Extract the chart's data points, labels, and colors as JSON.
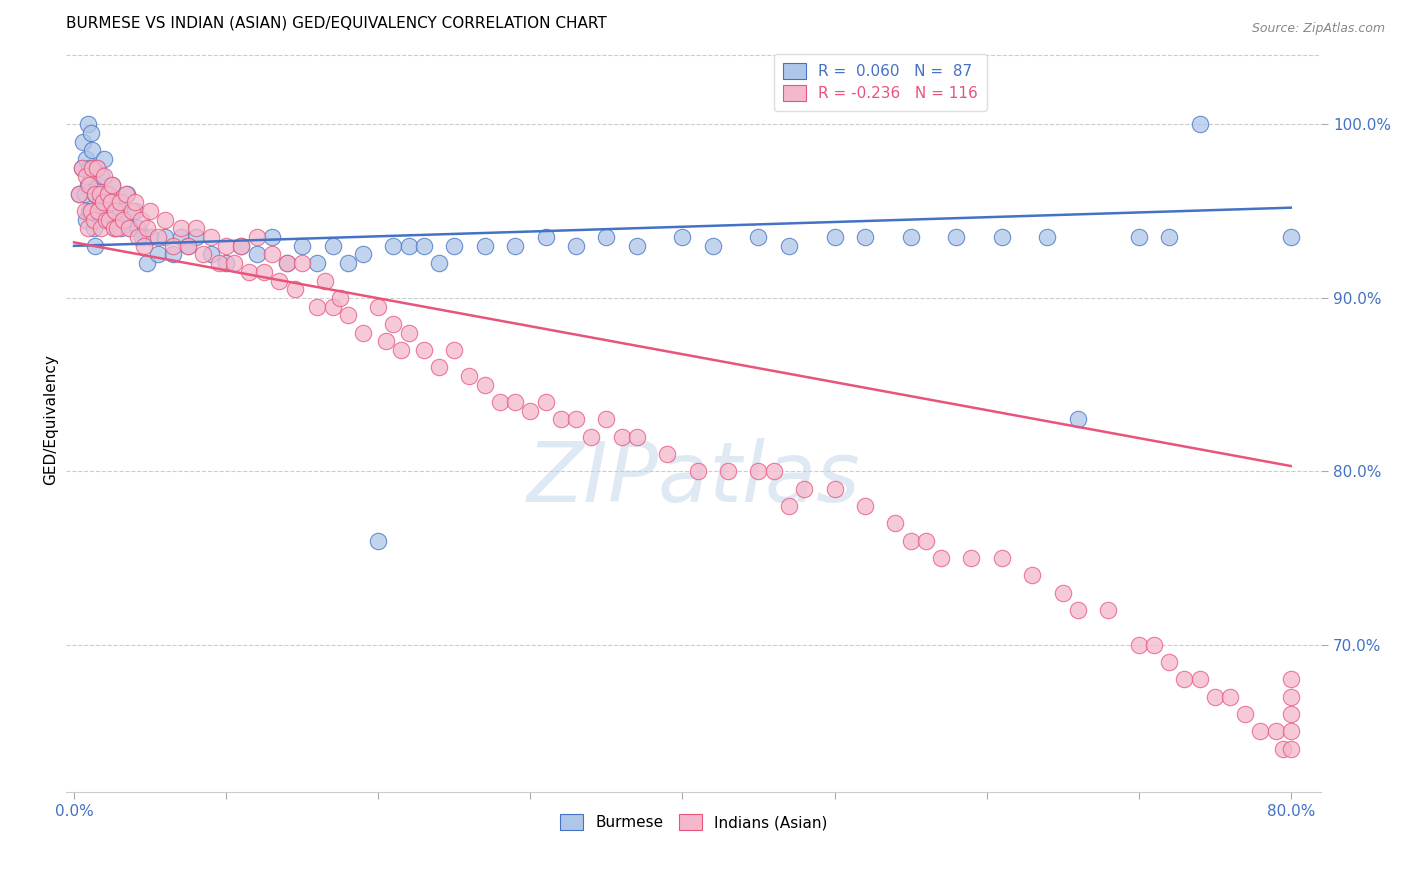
{
  "title": "BURMESE VS INDIAN (ASIAN) GED/EQUIVALENCY CORRELATION CHART",
  "source": "Source: ZipAtlas.com",
  "ylabel": "GED/Equivalency",
  "xlim": [
    -0.005,
    0.82
  ],
  "ylim": [
    0.615,
    1.045
  ],
  "xtick_vals": [
    0.0,
    0.1,
    0.2,
    0.3,
    0.4,
    0.5,
    0.6,
    0.7,
    0.8
  ],
  "xticklabels": [
    "0.0%",
    "",
    "",
    "",
    "",
    "",
    "",
    "",
    "80.0%"
  ],
  "yticks_right": [
    0.7,
    0.8,
    0.9,
    1.0
  ],
  "yticklabels_right": [
    "70.0%",
    "80.0%",
    "90.0%",
    "100.0%"
  ],
  "top_gridline_y": 1.04,
  "blue_color": "#4472c4",
  "pink_color": "#e8547a",
  "blue_fill": "#aec6e8",
  "pink_fill": "#f4b8cc",
  "watermark": "ZIPatlas",
  "watermark_color": "#b8d0e8",
  "grid_color": "#cccccc",
  "axis_tick_color": "#4472c4",
  "title_fontsize": 11,
  "blue_regline": [
    0.0,
    0.8,
    0.93,
    0.952
  ],
  "pink_regline": [
    0.0,
    0.8,
    0.932,
    0.803
  ],
  "legend": [
    {
      "label": "R =  0.060   N =  87",
      "color": "#4472c4"
    },
    {
      "label": "R = -0.236   N = 116",
      "color": "#e8547a"
    }
  ],
  "blue_x": [
    0.003,
    0.005,
    0.006,
    0.007,
    0.008,
    0.008,
    0.009,
    0.009,
    0.01,
    0.01,
    0.011,
    0.011,
    0.012,
    0.012,
    0.013,
    0.013,
    0.014,
    0.014,
    0.015,
    0.015,
    0.016,
    0.017,
    0.018,
    0.019,
    0.02,
    0.02,
    0.021,
    0.022,
    0.023,
    0.025,
    0.026,
    0.027,
    0.028,
    0.03,
    0.031,
    0.033,
    0.035,
    0.037,
    0.04,
    0.042,
    0.045,
    0.048,
    0.05,
    0.055,
    0.06,
    0.065,
    0.07,
    0.075,
    0.08,
    0.09,
    0.1,
    0.11,
    0.12,
    0.13,
    0.14,
    0.15,
    0.16,
    0.17,
    0.18,
    0.19,
    0.2,
    0.21,
    0.22,
    0.23,
    0.24,
    0.25,
    0.27,
    0.29,
    0.31,
    0.33,
    0.35,
    0.37,
    0.4,
    0.42,
    0.45,
    0.47,
    0.5,
    0.52,
    0.55,
    0.58,
    0.61,
    0.64,
    0.66,
    0.7,
    0.72,
    0.74,
    0.8
  ],
  "blue_y": [
    0.96,
    0.975,
    0.99,
    0.96,
    0.98,
    0.945,
    1.0,
    0.965,
    0.975,
    0.95,
    0.995,
    0.97,
    0.985,
    0.95,
    0.975,
    0.94,
    0.96,
    0.93,
    0.975,
    0.95,
    0.965,
    0.955,
    0.97,
    0.95,
    0.98,
    0.95,
    0.96,
    0.945,
    0.955,
    0.965,
    0.95,
    0.94,
    0.955,
    0.95,
    0.94,
    0.945,
    0.96,
    0.94,
    0.95,
    0.94,
    0.935,
    0.92,
    0.935,
    0.925,
    0.935,
    0.925,
    0.935,
    0.93,
    0.935,
    0.925,
    0.92,
    0.93,
    0.925,
    0.935,
    0.92,
    0.93,
    0.92,
    0.93,
    0.92,
    0.925,
    0.76,
    0.93,
    0.93,
    0.93,
    0.92,
    0.93,
    0.93,
    0.93,
    0.935,
    0.93,
    0.935,
    0.93,
    0.935,
    0.93,
    0.935,
    0.93,
    0.935,
    0.935,
    0.935,
    0.935,
    0.935,
    0.935,
    0.83,
    0.935,
    0.935,
    1.0,
    0.935
  ],
  "pink_x": [
    0.003,
    0.005,
    0.007,
    0.008,
    0.009,
    0.01,
    0.011,
    0.012,
    0.013,
    0.014,
    0.015,
    0.016,
    0.017,
    0.018,
    0.019,
    0.02,
    0.021,
    0.022,
    0.023,
    0.024,
    0.025,
    0.026,
    0.027,
    0.028,
    0.03,
    0.032,
    0.034,
    0.036,
    0.038,
    0.04,
    0.042,
    0.044,
    0.046,
    0.048,
    0.05,
    0.055,
    0.06,
    0.065,
    0.07,
    0.075,
    0.08,
    0.085,
    0.09,
    0.095,
    0.1,
    0.105,
    0.11,
    0.115,
    0.12,
    0.125,
    0.13,
    0.135,
    0.14,
    0.145,
    0.15,
    0.16,
    0.165,
    0.17,
    0.175,
    0.18,
    0.19,
    0.2,
    0.205,
    0.21,
    0.215,
    0.22,
    0.23,
    0.24,
    0.25,
    0.26,
    0.27,
    0.28,
    0.29,
    0.3,
    0.31,
    0.32,
    0.33,
    0.34,
    0.35,
    0.36,
    0.37,
    0.39,
    0.41,
    0.43,
    0.45,
    0.46,
    0.47,
    0.48,
    0.5,
    0.52,
    0.54,
    0.55,
    0.56,
    0.57,
    0.59,
    0.61,
    0.63,
    0.65,
    0.66,
    0.68,
    0.7,
    0.71,
    0.72,
    0.73,
    0.74,
    0.75,
    0.76,
    0.77,
    0.78,
    0.79,
    0.795,
    0.8,
    0.8,
    0.8,
    0.8,
    0.8
  ],
  "pink_y": [
    0.96,
    0.975,
    0.95,
    0.97,
    0.94,
    0.965,
    0.95,
    0.975,
    0.945,
    0.96,
    0.975,
    0.95,
    0.96,
    0.94,
    0.955,
    0.97,
    0.945,
    0.96,
    0.945,
    0.955,
    0.965,
    0.94,
    0.95,
    0.94,
    0.955,
    0.945,
    0.96,
    0.94,
    0.95,
    0.955,
    0.935,
    0.945,
    0.93,
    0.94,
    0.95,
    0.935,
    0.945,
    0.93,
    0.94,
    0.93,
    0.94,
    0.925,
    0.935,
    0.92,
    0.93,
    0.92,
    0.93,
    0.915,
    0.935,
    0.915,
    0.925,
    0.91,
    0.92,
    0.905,
    0.92,
    0.895,
    0.91,
    0.895,
    0.9,
    0.89,
    0.88,
    0.895,
    0.875,
    0.885,
    0.87,
    0.88,
    0.87,
    0.86,
    0.87,
    0.855,
    0.85,
    0.84,
    0.84,
    0.835,
    0.84,
    0.83,
    0.83,
    0.82,
    0.83,
    0.82,
    0.82,
    0.81,
    0.8,
    0.8,
    0.8,
    0.8,
    0.78,
    0.79,
    0.79,
    0.78,
    0.77,
    0.76,
    0.76,
    0.75,
    0.75,
    0.75,
    0.74,
    0.73,
    0.72,
    0.72,
    0.7,
    0.7,
    0.69,
    0.68,
    0.68,
    0.67,
    0.67,
    0.66,
    0.65,
    0.65,
    0.64,
    0.64,
    0.65,
    0.66,
    0.67,
    0.68
  ]
}
